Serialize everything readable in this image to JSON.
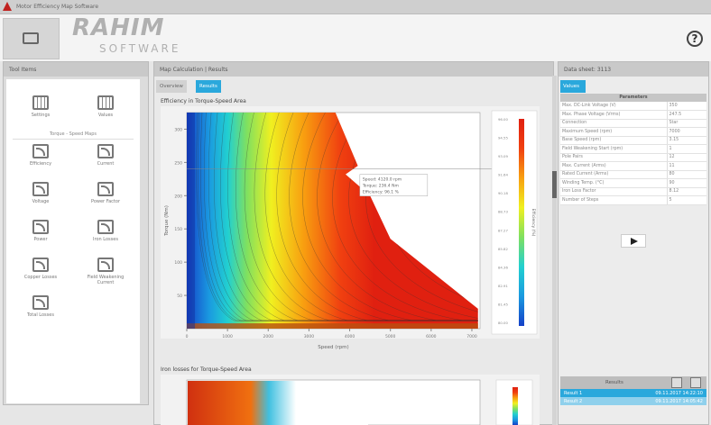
{
  "window": {
    "title": "Motor Efficiency Map Software"
  },
  "ribbon": {
    "open_icon": "folder-icon",
    "help_icon": "help-icon",
    "help_glyph": "?"
  },
  "watermark": {
    "line1": "RAHIM",
    "line2": "SOFTWARE"
  },
  "left_panel": {
    "title": "Tool Items",
    "top_items": [
      {
        "label": "Settings",
        "icon": "grid-icon"
      },
      {
        "label": "Values",
        "icon": "grid-icon"
      }
    ],
    "section": "Torque - Speed Maps",
    "items": [
      {
        "label": "Efficiency"
      },
      {
        "label": "Current"
      },
      {
        "label": "Voltage"
      },
      {
        "label": "Power Factor"
      },
      {
        "label": "Power"
      },
      {
        "label": "Iron Losses"
      },
      {
        "label": "Copper Losses"
      },
      {
        "label": "Field Weakening Current"
      },
      {
        "label": "Total Losses"
      }
    ]
  },
  "center_panel": {
    "title": "Map Calculation | Results",
    "tabs": [
      {
        "label": "Overview",
        "active": false
      },
      {
        "label": "Results",
        "active": true
      }
    ],
    "second_chart_title": "Iron losses for Torque-Speed Area"
  },
  "chart_data": {
    "type": "heatmap",
    "title": "Efficiency in Torque-Speed Area",
    "xlabel": "Speed (rpm)",
    "ylabel": "Torque (Nm)",
    "colorbar_label": "Efficiency (%)",
    "xlim": [
      0,
      7200
    ],
    "ylim": [
      0,
      325
    ],
    "xticks": [
      0,
      1000,
      2000,
      3000,
      4000,
      5000,
      6000,
      7000
    ],
    "yticks": [
      50,
      100,
      150,
      200,
      250,
      300
    ],
    "colorbar_ticks": [
      "96.00",
      "94.55",
      "93.09",
      "91.64",
      "90.18",
      "88.73",
      "87.27",
      "85.82",
      "84.36",
      "82.91",
      "81.45",
      "80.00"
    ],
    "colormap": [
      "#1540c8",
      "#1a9ae0",
      "#22d0d0",
      "#7fe060",
      "#f0f020",
      "#f8a010",
      "#f04010",
      "#e02010"
    ],
    "envelope": [
      [
        0,
        325
      ],
      [
        3650,
        325
      ],
      [
        4200,
        245
      ],
      [
        3900,
        232
      ],
      [
        4500,
        200
      ],
      [
        5000,
        135
      ],
      [
        7150,
        30
      ],
      [
        7150,
        0
      ],
      [
        0,
        0
      ]
    ],
    "grid": false,
    "tooltip": [
      "Speed: 4120.0 rpm",
      "Torque: 236.4 Nm",
      "Efficiency: 96.1 %"
    ]
  },
  "right_panel": {
    "title": "Data sheet: 3113",
    "values_button": "Values",
    "table_header": "Parameters",
    "rows": [
      [
        "Max. DC-Link Voltage (V)",
        "350"
      ],
      [
        "Max. Phase Voltage (Vrms)",
        "247.5"
      ],
      [
        "Connection",
        "Star"
      ],
      [
        "Maximum Speed (rpm)",
        "7000"
      ],
      [
        "Base Speed (rpm)",
        "3.15"
      ],
      [
        "Field Weakening Start (rpm)",
        "1"
      ],
      [
        "Pole Pairs",
        "12"
      ],
      [
        "Max. Current (Arms)",
        "11"
      ],
      [
        "Rated Current (Arms)",
        "80"
      ],
      [
        "Winding Temp. (°C)",
        "90"
      ],
      [
        "Iron Loss Factor",
        "8.12"
      ],
      [
        "Number of Steps",
        "5"
      ]
    ],
    "results_header": "Results",
    "results": [
      {
        "name": "Result 1",
        "date": "09.11.2017 14:22:10",
        "selected": true
      },
      {
        "name": "Result 2",
        "date": "09.11.2017 14:05:42",
        "selected": false
      }
    ]
  }
}
